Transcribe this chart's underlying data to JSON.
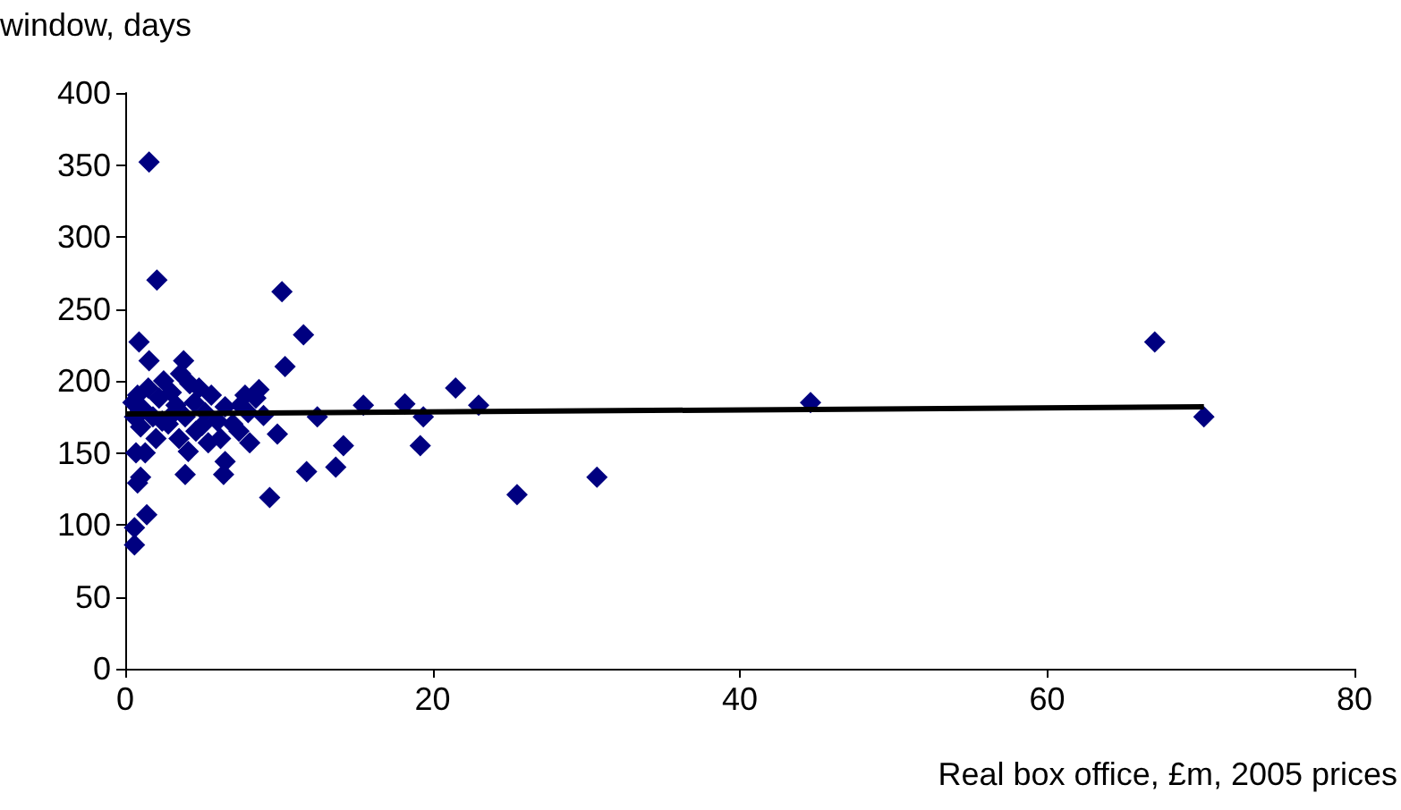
{
  "chart_data": {
    "type": "scatter",
    "xlabel": "Real box office, £m, 2005 prices",
    "ylabel": "window, days",
    "xlim": [
      0,
      80
    ],
    "xticks": [
      0,
      20,
      40,
      60,
      80
    ],
    "ylim": [
      0,
      400
    ],
    "yticks": [
      0,
      50,
      100,
      150,
      200,
      250,
      300,
      350,
      400
    ],
    "grid": false,
    "marker": "diamond",
    "series": [
      {
        "color": "#000080",
        "x": [
          1.55,
          2.06,
          0.9,
          1.55,
          3.8,
          10.2,
          11.6,
          10.4,
          12.5,
          15.5,
          18.2,
          19.4,
          21.5,
          23,
          19.2,
          14.2,
          13.7,
          11.8,
          9.4,
          9.9,
          25.5,
          30.7,
          44.6,
          67,
          70.2,
          8.7,
          0.7,
          1.0,
          0.8,
          1.4,
          0.6,
          0.6,
          3.9,
          6.4,
          4.1,
          5.4,
          6.5,
          8.1,
          7.4,
          5.0,
          3.1,
          0.5,
          0.8,
          1.2,
          1.5,
          1.8,
          2.2,
          2.5,
          2.8,
          3.0,
          3.3,
          3.6,
          3.9,
          4.2,
          4.5,
          4.8,
          5.2,
          5.6,
          6.0,
          6.5,
          7.0,
          7.5,
          8.0,
          8.5,
          9.0,
          1.0,
          2.0,
          0.6,
          1.3,
          4.6,
          2.4,
          3.5,
          7.8,
          6.2
        ],
        "values": [
          352,
          270,
          227,
          214,
          214,
          262,
          232,
          210,
          175,
          183,
          184,
          175,
          195,
          183,
          155,
          155,
          140,
          137,
          119,
          163,
          121,
          133,
          185,
          227,
          175,
          194,
          150,
          133,
          129,
          107,
          98,
          86,
          135,
          135,
          151,
          157,
          144,
          157,
          165,
          169,
          177,
          185,
          190,
          180,
          195,
          175,
          188,
          200,
          170,
          192,
          183,
          205,
          175,
          198,
          185,
          195,
          178,
          190,
          172,
          182,
          170,
          183,
          178,
          188,
          176,
          168,
          160,
          175,
          150,
          165,
          172,
          160,
          190,
          160
        ]
      },
      {
        "type": "line",
        "color": "#000000",
        "marker": "none",
        "line_style": "solid",
        "x": [
          0,
          70.2
        ],
        "values": [
          177,
          182
        ]
      }
    ]
  }
}
